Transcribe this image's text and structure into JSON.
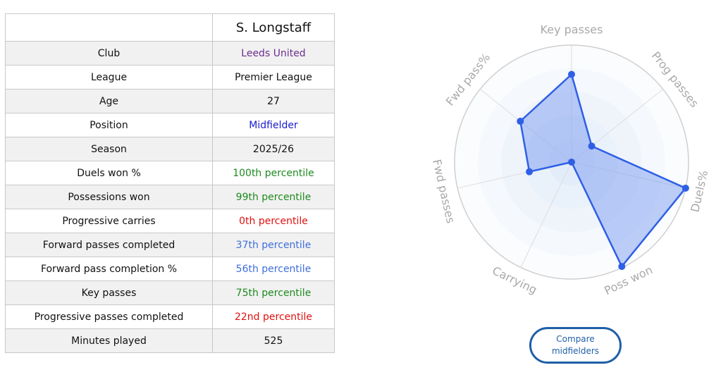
{
  "player": {
    "name": "S. Longstaff"
  },
  "rows": [
    {
      "label": "Club",
      "value": "Leeds United",
      "color": "#6b2f8f"
    },
    {
      "label": "League",
      "value": "Premier League",
      "color": "#111111"
    },
    {
      "label": "Age",
      "value": "27",
      "color": "#111111"
    },
    {
      "label": "Position",
      "value": "Midfielder",
      "color": "#1a1ad0"
    },
    {
      "label": "Season",
      "value": "2025/26",
      "color": "#111111"
    },
    {
      "label": "Duels won %",
      "value": "100th percentile",
      "color": "#1e8a1e"
    },
    {
      "label": "Possessions won",
      "value": "99th percentile",
      "color": "#1e8a1e"
    },
    {
      "label": "Progressive carries",
      "value": "0th percentile",
      "color": "#e01010"
    },
    {
      "label": "Forward passes completed",
      "value": "37th percentile",
      "color": "#3f6fdc"
    },
    {
      "label": "Forward pass completion %",
      "value": "56th percentile",
      "color": "#3f6fdc"
    },
    {
      "label": "Key passes",
      "value": "75th percentile",
      "color": "#1e8a1e"
    },
    {
      "label": "Progressive passes completed",
      "value": "22nd percentile",
      "color": "#e01010"
    },
    {
      "label": "Minutes played",
      "value": "525",
      "color": "#111111"
    }
  ],
  "compare_button": {
    "line1": "Compare",
    "line2": "midfielders"
  },
  "chart_data": {
    "type": "radar",
    "axes": [
      "Key passes",
      "Prog passes",
      "Duels%",
      "Poss won",
      "Carrying",
      "Fwd passes",
      "Fwd pass%"
    ],
    "series": [
      {
        "values": [
          75,
          22,
          100,
          99,
          0,
          37,
          56
        ]
      }
    ],
    "range": [
      0,
      100
    ],
    "colors": {
      "fill": "#6e93f0",
      "line": "#2f5fe6",
      "ring": "#e8f0fb",
      "axis_label": "#a9a9a9"
    }
  }
}
